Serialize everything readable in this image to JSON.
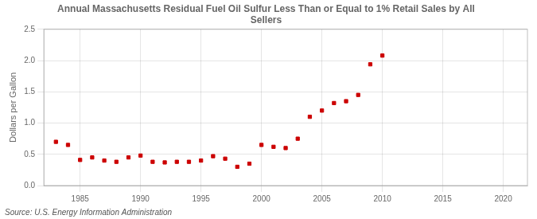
{
  "chart_data": {
    "type": "scatter",
    "title": "Annual Massachusetts Residual Fuel Oil Sulfur Less Than or Equal to 1% Retail Sales by All\nSellers",
    "ylabel": "Dollars per Gallon",
    "source": "Source: U.S. Energy Information Administration",
    "x": [
      1983,
      1984,
      1985,
      1986,
      1987,
      1988,
      1989,
      1990,
      1991,
      1992,
      1993,
      1994,
      1995,
      1996,
      1997,
      1998,
      1999,
      2000,
      2001,
      2002,
      2003,
      2004,
      2005,
      2006,
      2007,
      2008,
      2009,
      2010
    ],
    "values": [
      0.7,
      0.65,
      0.41,
      0.45,
      0.4,
      0.38,
      0.45,
      0.48,
      0.38,
      0.37,
      0.38,
      0.38,
      0.4,
      0.47,
      0.43,
      0.3,
      0.35,
      0.65,
      0.62,
      0.6,
      0.75,
      1.1,
      1.2,
      1.32,
      1.35,
      1.45,
      1.94,
      2.08
    ],
    "color": "#cc0000",
    "marker": "square",
    "xlim": [
      1982,
      2022
    ],
    "xticks": [
      1985,
      1990,
      1995,
      2000,
      2005,
      2010,
      2015,
      2020
    ],
    "ylim": [
      0.0,
      2.5
    ],
    "yticks": [
      {
        "value": 0.0,
        "label": "0.0"
      },
      0.5,
      {
        "value": 1.0,
        "label": "1.0"
      },
      1.5,
      {
        "value": 2.0,
        "label": "2.0"
      },
      2.5
    ],
    "grid": true
  }
}
